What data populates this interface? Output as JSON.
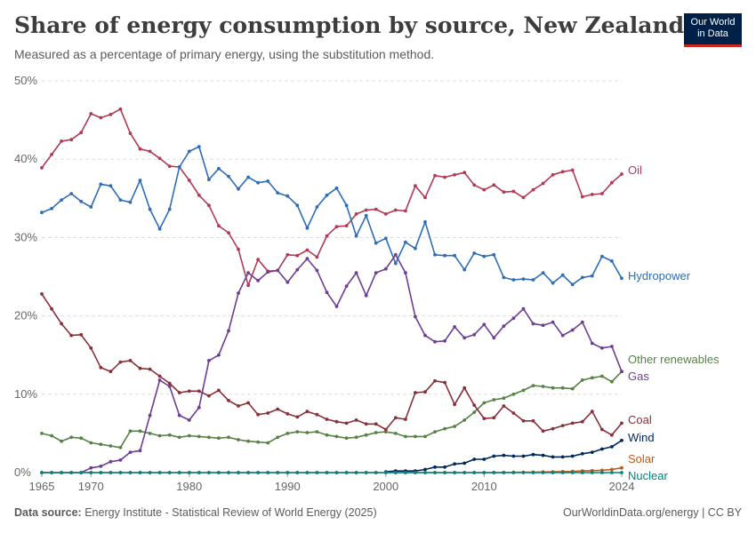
{
  "header": {
    "title": "Share of energy consumption by source, New Zealand",
    "subtitle": "Measured as a percentage of primary energy, using the substitution method.",
    "logo_line1": "Our World",
    "logo_line2": "in Data"
  },
  "footer": {
    "source_label": "Data source:",
    "source_text": "Energy Institute - Statistical Review of World Energy (2025)",
    "credit": "OurWorldinData.org/energy | CC BY"
  },
  "chart_data": {
    "type": "line",
    "title": "Share of energy consumption by source, New Zealand",
    "subtitle": "Measured as a percentage of primary energy, using the substitution method.",
    "xlabel": "",
    "ylabel": "",
    "xlim": [
      1965,
      2024
    ],
    "ylim": [
      0,
      50
    ],
    "x_ticks": [
      1965,
      1970,
      1980,
      1990,
      2000,
      2010,
      2024
    ],
    "y_ticks": [
      0,
      10,
      20,
      30,
      40,
      50
    ],
    "y_tick_labels": [
      "0%",
      "10%",
      "20%",
      "30%",
      "40%",
      "50%"
    ],
    "grid": true,
    "legend": "inline-right",
    "series": [
      {
        "name": "Oil",
        "color": "#b13a56",
        "start": 1965,
        "values": [
          38.9,
          40.6,
          42.3,
          42.5,
          43.4,
          45.8,
          45.3,
          45.7,
          46.4,
          43.3,
          41.3,
          41.0,
          40.1,
          39.1,
          39.0,
          37.3,
          35.4,
          34.1,
          31.5,
          30.6,
          28.5,
          23.9,
          27.2,
          25.7,
          25.8,
          27.8,
          27.7,
          28.4,
          27.5,
          30.2,
          31.4,
          31.5,
          33.0,
          33.5,
          33.6,
          33.0,
          33.5,
          33.4,
          36.6,
          35.1,
          37.9,
          37.7,
          38.0,
          38.3,
          36.7,
          36.1,
          36.7,
          35.8,
          35.9,
          35.1,
          36.1,
          36.9,
          38.0,
          38.4,
          38.6,
          35.2,
          35.5,
          35.6,
          37.0,
          38.1
        ]
      },
      {
        "name": "Hydropower",
        "color": "#2f6db5",
        "start": 1965,
        "values": [
          33.2,
          33.7,
          34.8,
          35.6,
          34.6,
          33.9,
          36.8,
          36.6,
          34.8,
          34.5,
          37.3,
          33.6,
          31.1,
          33.6,
          39.0,
          41.0,
          41.6,
          37.4,
          38.8,
          37.8,
          36.2,
          37.7,
          37.0,
          37.2,
          35.7,
          35.3,
          34.1,
          31.2,
          33.9,
          35.4,
          36.3,
          34.1,
          30.2,
          32.8,
          29.3,
          29.9,
          26.7,
          29.4,
          28.6,
          32.0,
          27.8,
          27.7,
          27.7,
          25.9,
          28.0,
          27.6,
          27.8,
          24.9,
          24.6,
          24.7,
          24.6,
          25.5,
          24.2,
          25.2,
          24.0,
          24.9,
          25.1,
          27.6,
          27.0,
          24.8
        ]
      },
      {
        "name": "Other renewables",
        "color": "#578145",
        "start": 1965,
        "values": [
          5.0,
          4.7,
          4.0,
          4.5,
          4.4,
          3.8,
          3.6,
          3.4,
          3.2,
          5.3,
          5.3,
          5.0,
          4.7,
          4.8,
          4.5,
          4.7,
          4.6,
          4.5,
          4.4,
          4.5,
          4.2,
          4.0,
          3.9,
          3.8,
          4.5,
          5.0,
          5.2,
          5.1,
          5.2,
          4.8,
          4.6,
          4.4,
          4.5,
          4.8,
          5.1,
          5.2,
          5.0,
          4.6,
          4.6,
          4.6,
          5.2,
          5.6,
          5.9,
          6.7,
          7.7,
          8.9,
          9.3,
          9.5,
          10.0,
          10.5,
          11.1,
          11.0,
          10.8,
          10.8,
          10.7,
          11.8,
          12.1,
          12.3,
          11.6,
          12.9
        ]
      },
      {
        "name": "Gas",
        "color": "#6d3e91",
        "start": 1965,
        "values": [
          0,
          0,
          0,
          0,
          0,
          0.6,
          0.8,
          1.4,
          1.6,
          2.6,
          2.8,
          7.3,
          11.8,
          11.0,
          7.3,
          6.7,
          8.3,
          14.3,
          15.0,
          18.1,
          22.9,
          25.5,
          24.5,
          25.6,
          25.8,
          24.3,
          25.9,
          27.3,
          25.8,
          23.0,
          21.2,
          23.8,
          25.5,
          22.6,
          25.5,
          26.0,
          27.8,
          25.5,
          19.9,
          17.5,
          16.7,
          16.8,
          18.6,
          17.2,
          17.6,
          18.9,
          17.2,
          18.7,
          19.7,
          20.9,
          19.0,
          18.8,
          19.2,
          17.5,
          18.2,
          19.2,
          16.5,
          15.9,
          16.1,
          12.9
        ]
      },
      {
        "name": "Coal",
        "color": "#883039",
        "start": 1965,
        "values": [
          22.8,
          20.9,
          19.0,
          17.5,
          17.6,
          15.9,
          13.4,
          12.9,
          14.1,
          14.3,
          13.3,
          13.2,
          12.3,
          11.4,
          10.2,
          10.4,
          10.4,
          9.8,
          10.5,
          9.2,
          8.5,
          8.9,
          7.4,
          7.6,
          8.1,
          7.5,
          7.1,
          7.8,
          7.4,
          6.8,
          6.5,
          6.3,
          6.7,
          6.2,
          6.2,
          5.5,
          7.0,
          6.8,
          10.2,
          10.3,
          11.7,
          11.5,
          8.7,
          10.8,
          8.6,
          6.9,
          7.0,
          8.5,
          7.6,
          6.6,
          6.6,
          5.3,
          5.6,
          6.0,
          6.3,
          6.5,
          7.8,
          5.5,
          4.8,
          6.3
        ]
      },
      {
        "name": "Wind",
        "color": "#00295b",
        "start": 2000,
        "values": [
          0.1,
          0.2,
          0.2,
          0.2,
          0.4,
          0.7,
          0.7,
          1.1,
          1.2,
          1.7,
          1.7,
          2.1,
          2.2,
          2.1,
          2.1,
          2.3,
          2.2,
          2.0,
          2.0,
          2.1,
          2.4,
          2.6,
          3.0,
          3.3,
          4.1
        ]
      },
      {
        "name": "Solar",
        "color": "#c05917",
        "start": 1965,
        "values": [
          0,
          0,
          0,
          0,
          0,
          0,
          0,
          0,
          0,
          0,
          0,
          0,
          0,
          0,
          0,
          0,
          0,
          0,
          0,
          0,
          0,
          0,
          0,
          0,
          0,
          0,
          0,
          0,
          0,
          0,
          0,
          0,
          0,
          0,
          0,
          0,
          0,
          0,
          0,
          0,
          0,
          0,
          0,
          0,
          0,
          0,
          0.01,
          0.01,
          0.03,
          0.04,
          0.06,
          0.08,
          0.1,
          0.13,
          0.15,
          0.2,
          0.25,
          0.3,
          0.4,
          0.6
        ]
      },
      {
        "name": "Nuclear",
        "color": "#00847e",
        "start": 1965,
        "values": [
          0,
          0,
          0,
          0,
          0,
          0,
          0,
          0,
          0,
          0,
          0,
          0,
          0,
          0,
          0,
          0,
          0,
          0,
          0,
          0,
          0,
          0,
          0,
          0,
          0,
          0,
          0,
          0,
          0,
          0,
          0,
          0,
          0,
          0,
          0,
          0,
          0,
          0,
          0,
          0,
          0,
          0,
          0,
          0,
          0,
          0,
          0,
          0,
          0,
          0,
          0,
          0,
          0,
          0,
          0,
          0,
          0,
          0,
          0,
          0
        ]
      }
    ]
  }
}
